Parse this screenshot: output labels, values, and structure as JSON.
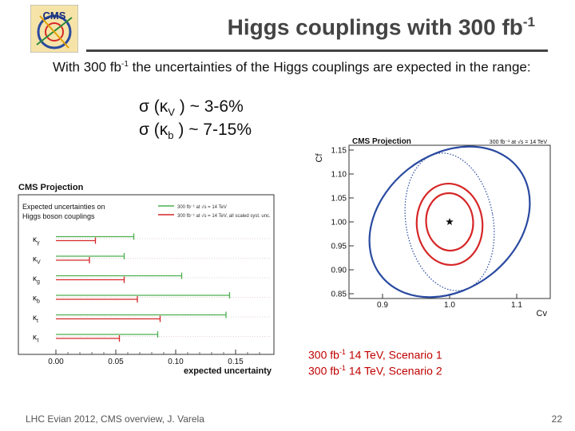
{
  "slide": {
    "title_prefix": "Higgs couplings with 300 fb",
    "title_sup": "-1",
    "intro_a": "With 300 fb",
    "intro_sup": "-1",
    "intro_b": " the uncertainties of the Higgs couplings are expected in the range:",
    "sigma_lines": [
      {
        "pre": "σ (κ",
        "sub": "V",
        "post": " ) ~ 3-6%"
      },
      {
        "pre": "σ (κ",
        "sub": "b",
        "post": " ) ~ 7-15%"
      }
    ],
    "scenarios": [
      {
        "pre": "300 fb",
        "sup": "-1",
        "post": " 14 TeV, Scenario 1"
      },
      {
        "pre": "300 fb",
        "sup": "-1",
        "post": " 14 TeV, Scenario 2"
      }
    ],
    "footer": "LHC Evian 2012, CMS overview, J. Varela",
    "page_number": "22"
  },
  "chart_data": [
    {
      "type": "bar",
      "orientation": "horizontal-error-bars",
      "title": "CMS Projection",
      "subtitle": "Expected uncertainties on Higgs boson couplings",
      "xlabel": "expected uncertainty",
      "xlim": [
        0,
        0.18
      ],
      "xticks": [
        "0.00",
        "0.05",
        "0.10",
        "0.15"
      ],
      "categories": [
        "κγ",
        "κV",
        "κg",
        "κb",
        "κt",
        "κτ"
      ],
      "category_sym": [
        "κ",
        "κ",
        "κ",
        "κ",
        "κ",
        "κ"
      ],
      "category_sub": [
        "γ",
        "V",
        "g",
        "b",
        "t",
        "τ"
      ],
      "series": [
        {
          "name": "300 fb⁻¹ at √s = 14 TeV",
          "color": "#4caf50",
          "values": [
            0.065,
            0.057,
            0.105,
            0.145,
            0.142,
            0.085
          ]
        },
        {
          "name": "300 fb⁻¹ at √s = 14 TeV, all scaled syst. unc.",
          "color": "#d62728",
          "values": [
            0.033,
            0.028,
            0.057,
            0.068,
            0.087,
            0.053
          ]
        }
      ],
      "legend_position": "top"
    },
    {
      "type": "scatter",
      "title": "CMS Projection",
      "annotation": "300 fb⁻¹ at √s = 14 TeV",
      "xlabel": "Cv",
      "ylabel": "Cf",
      "xlim": [
        0.85,
        1.15
      ],
      "ylim": [
        0.84,
        1.16
      ],
      "xticks": [
        "0.9",
        "1.0",
        "1.1"
      ],
      "yticks": [
        "0.85",
        "0.90",
        "0.95",
        "1.00",
        "1.05",
        "1.10",
        "1.15"
      ],
      "best_fit": {
        "x": 1.0,
        "y": 1.0
      },
      "contours": [
        {
          "name": "Scenario 1 (95% CL)",
          "color": "#2a4aa0",
          "style": "solid",
          "cx": 1.0,
          "cy": 1.0,
          "rx": 0.13,
          "ry": 0.14,
          "tilt_deg": -38
        },
        {
          "name": "Scenario 1 (68% CL)",
          "color": "#2a4aa0",
          "style": "dotted",
          "cx": 1.0,
          "cy": 1.0,
          "rx": 0.065,
          "ry": 0.145,
          "tilt_deg": -10
        },
        {
          "name": "Scenario 2 (95% CL)",
          "color": "#d62728",
          "style": "solid",
          "cx": 1.0,
          "cy": 0.995,
          "rx": 0.049,
          "ry": 0.085,
          "tilt_deg": -5
        },
        {
          "name": "Scenario 2 (68% CL)",
          "color": "#d62728",
          "style": "solid",
          "cx": 1.0,
          "cy": 1.0,
          "rx": 0.035,
          "ry": 0.06,
          "tilt_deg": -5
        }
      ]
    }
  ]
}
